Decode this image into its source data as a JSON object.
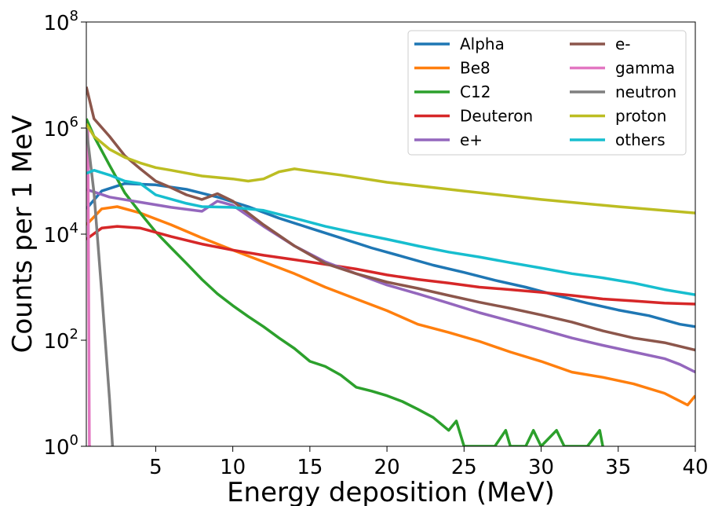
{
  "chart_data": {
    "type": "line",
    "title": "",
    "xlabel": "Energy deposition (MeV)",
    "ylabel": "Counts per 1 MeV",
    "xscale": "linear",
    "yscale": "log",
    "xlim": [
      0.5,
      40
    ],
    "ylim": [
      1,
      100000000
    ],
    "xticks": [
      {
        "value": 5,
        "label": "5"
      },
      {
        "value": 10,
        "label": "10"
      },
      {
        "value": 15,
        "label": "15"
      },
      {
        "value": 20,
        "label": "20"
      },
      {
        "value": 25,
        "label": "25"
      },
      {
        "value": 30,
        "label": "30"
      },
      {
        "value": 35,
        "label": "35"
      },
      {
        "value": 40,
        "label": "40"
      }
    ],
    "yticks": [
      {
        "value": 1,
        "base": "10",
        "exp": "0"
      },
      {
        "value": 100,
        "base": "10",
        "exp": "2"
      },
      {
        "value": 10000,
        "base": "10",
        "exp": "4"
      },
      {
        "value": 1000000,
        "base": "10",
        "exp": "6"
      },
      {
        "value": 100000000,
        "base": "10",
        "exp": "8"
      }
    ],
    "grid": false,
    "legend": {
      "placement": "top-right",
      "columns": 2
    },
    "series": [
      {
        "name": "Alpha",
        "color": "#1f77b4",
        "x": [
          0.5,
          1.5,
          3,
          5,
          7,
          9,
          11,
          13,
          15,
          17,
          19,
          21,
          23,
          25,
          27,
          29,
          31,
          33,
          35,
          37,
          39,
          40
        ],
        "y": [
          30000,
          65000,
          90000,
          85000,
          70000,
          50000,
          33000,
          20000,
          13000,
          8500,
          5500,
          3800,
          2600,
          1900,
          1350,
          1000,
          700,
          500,
          370,
          290,
          200,
          180
        ]
      },
      {
        "name": "Be8",
        "color": "#ff7f0e",
        "x": [
          0.5,
          1.5,
          2.5,
          4,
          6,
          8,
          10,
          12,
          14,
          16,
          18,
          20,
          22,
          24,
          26,
          28,
          30,
          32,
          34,
          36,
          38,
          39.5,
          40
        ],
        "y": [
          15000,
          30000,
          33000,
          25000,
          15000,
          8500,
          5000,
          3000,
          1800,
          1000,
          600,
          360,
          200,
          140,
          95,
          60,
          40,
          25,
          20,
          15,
          10,
          6,
          9
        ]
      },
      {
        "name": "C12",
        "color": "#2ca02c",
        "x": [
          0.5,
          1,
          2,
          3,
          4,
          5,
          6,
          7,
          8,
          9,
          10,
          11,
          12,
          13,
          14,
          15,
          16,
          17,
          18,
          19,
          20,
          21,
          22,
          23,
          24,
          24.5,
          25,
          26,
          27,
          27.7,
          28,
          29,
          29.5,
          30,
          31,
          31.5,
          33,
          33.8,
          34
        ],
        "y": [
          1500000,
          700000,
          200000,
          60000,
          25000,
          11000,
          5500,
          2800,
          1400,
          750,
          450,
          280,
          180,
          110,
          70,
          40,
          32,
          22,
          13,
          11,
          9,
          7,
          5,
          3.5,
          2,
          3,
          1,
          1,
          1,
          2,
          1,
          1,
          2,
          1,
          2,
          1,
          1,
          2,
          1
        ]
      },
      {
        "name": "Deuteron",
        "color": "#d62728",
        "x": [
          0.5,
          1.5,
          2.5,
          4,
          6,
          8,
          10,
          12,
          14,
          16,
          18,
          20,
          22,
          24,
          26,
          28,
          30,
          32,
          34,
          36,
          38,
          40
        ],
        "y": [
          8000,
          13000,
          14000,
          13000,
          9000,
          6500,
          5000,
          4000,
          3300,
          2700,
          2200,
          1700,
          1400,
          1200,
          1000,
          900,
          800,
          700,
          600,
          550,
          500,
          480
        ]
      },
      {
        "name": "e+",
        "color": "#9467bd",
        "x": [
          0.5,
          2,
          4,
          6,
          8,
          9,
          10,
          12,
          14,
          16,
          18,
          20,
          22,
          24,
          26,
          28,
          30,
          32,
          34,
          36,
          38,
          39,
          40
        ],
        "y": [
          70000,
          50000,
          40000,
          32000,
          27000,
          42000,
          35000,
          14000,
          6000,
          3000,
          1800,
          1100,
          750,
          500,
          330,
          230,
          160,
          110,
          80,
          60,
          45,
          35,
          25
        ]
      },
      {
        "name": "e-",
        "color": "#8c564b",
        "x": [
          0.5,
          1,
          2,
          3,
          4,
          5,
          6,
          7,
          8,
          9,
          10,
          11,
          12,
          14,
          16,
          18,
          20,
          22,
          24,
          26,
          28,
          30,
          32,
          34,
          36,
          38,
          40
        ],
        "y": [
          6000000,
          1500000,
          700000,
          300000,
          170000,
          100000,
          75000,
          55000,
          45000,
          58000,
          42000,
          25000,
          15000,
          6000,
          2800,
          1800,
          1250,
          950,
          700,
          520,
          400,
          300,
          220,
          150,
          110,
          90,
          65
        ]
      },
      {
        "name": "gamma",
        "color": "#e377c2",
        "x": [
          0.6,
          0.7,
          0.8
        ],
        "y": [
          1000000,
          1,
          1
        ]
      },
      {
        "name": "neutron",
        "color": "#7f7f7f",
        "x": [
          0.5,
          1,
          1.5,
          2,
          2.2
        ],
        "y": [
          1000000,
          60000,
          800,
          8,
          1
        ]
      },
      {
        "name": "proton",
        "color": "#bcbd22",
        "x": [
          0.5,
          1,
          2,
          3,
          4,
          5,
          6,
          8,
          10,
          11,
          12,
          13,
          14,
          15,
          17,
          20,
          25,
          30,
          35,
          40
        ],
        "y": [
          1200000,
          700000,
          400000,
          280000,
          220000,
          180000,
          160000,
          125000,
          110000,
          100000,
          110000,
          150000,
          170000,
          155000,
          130000,
          95000,
          65000,
          45000,
          33000,
          25000
        ]
      },
      {
        "name": "others",
        "color": "#17becf",
        "x": [
          0.5,
          1,
          2,
          3,
          4,
          5,
          7,
          8,
          10,
          12,
          14,
          16,
          18,
          20,
          22,
          24,
          26,
          28,
          30,
          32,
          34,
          36,
          38,
          40
        ],
        "y": [
          140000,
          160000,
          130000,
          100000,
          90000,
          55000,
          38000,
          33000,
          32000,
          28000,
          20000,
          14000,
          10500,
          8000,
          6000,
          4600,
          3700,
          2900,
          2300,
          1800,
          1500,
          1200,
          900,
          720
        ]
      }
    ]
  }
}
